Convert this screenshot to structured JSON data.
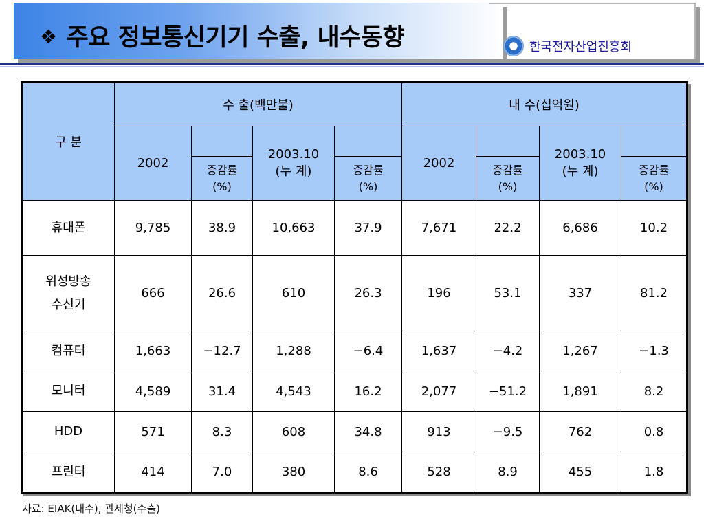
{
  "title": {
    "bullet": "❖",
    "text": "주요 정보통신기기 수출, 내수동향"
  },
  "org": {
    "logo_icon": "organization-logo-icon",
    "name": "한국전자산업진흥회"
  },
  "table": {
    "corner": "구  분",
    "export_header": "수      출(백만불)",
    "domestic_header": "내      수(십억원)",
    "year_2002": "2002",
    "period_2003_line1": "2003.10",
    "period_2003_line2": "(누 계)",
    "rate_line1": "증감률",
    "rate_line2": "(%)",
    "rows": [
      {
        "item": [
          "휴대폰"
        ],
        "values": [
          "9,785",
          "38.9",
          "10,663",
          "37.9",
          "7,671",
          "22.2",
          "6,686",
          "10.2"
        ]
      },
      {
        "item": [
          "위성방송",
          "수신기"
        ],
        "values": [
          "666",
          "26.6",
          "610",
          "26.3",
          "196",
          "53.1",
          "337",
          "81.2"
        ]
      },
      {
        "item": [
          "컴퓨터"
        ],
        "values": [
          "1,663",
          "−12.7",
          "1,288",
          "−6.4",
          "1,637",
          "−4.2",
          "1,267",
          "−1.3"
        ]
      },
      {
        "item": [
          "모니터"
        ],
        "values": [
          "4,589",
          "31.4",
          "4,543",
          "16.2",
          "2,077",
          "−51.2",
          "1,891",
          "8.2"
        ]
      },
      {
        "item": [
          "HDD"
        ],
        "values": [
          "571",
          "8.3",
          "608",
          "34.8",
          "913",
          "−9.5",
          "762",
          "0.8"
        ]
      },
      {
        "item": [
          "프린터"
        ],
        "values": [
          "414",
          "7.0",
          "380",
          "8.6",
          "528",
          "8.9",
          "455",
          "1.8"
        ]
      }
    ]
  },
  "colors": {
    "header_bg": "#a6cbf9",
    "title_blue": "#3d84e6",
    "org_text": "#1d1d9a"
  },
  "source_note": "자료: EIAK(내수), 관세청(수출)"
}
